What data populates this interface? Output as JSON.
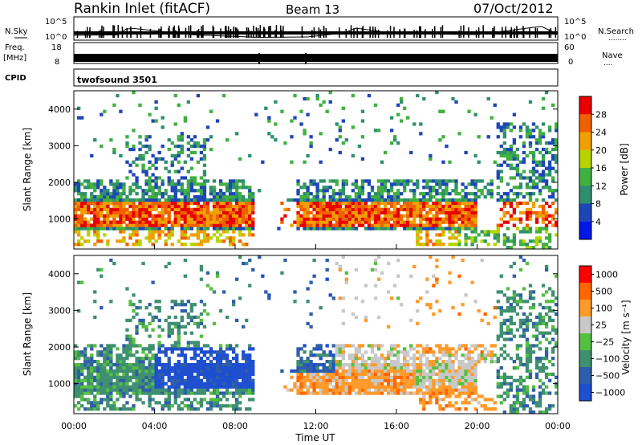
{
  "header": {
    "station": "Rankin Inlet (fitACF)",
    "beam": "Beam 13",
    "date": "07/Oct/2012"
  },
  "strip_labels": {
    "nsky": "N.Sky",
    "nsearch": "N.Search",
    "nsearch_dots": "........",
    "freq": "Freq.",
    "mhz": "[MHz]",
    "nave": "Nave",
    "nave_dots": "....",
    "cpid": "CPID",
    "cpid_value": "twofsound 3501"
  },
  "colors": {
    "power": [
      "#0018e8",
      "#1e46b8",
      "#2e8f6e",
      "#40b040",
      "#b8d400",
      "#f0a000",
      "#f06000",
      "#e80000"
    ],
    "velocity": [
      "#1d4fd0",
      "#2f5ea8",
      "#3f9070",
      "#55c040",
      "#c8c8c8",
      "#ff9a2a",
      "#ff6600",
      "#ff0000"
    ]
  },
  "chart_data": [
    {
      "type": "line",
      "panel": "noise",
      "x_label": "",
      "left_ticks": [
        "10^5",
        "10^0"
      ],
      "right_ticks": [
        "10^5",
        "10^0"
      ],
      "x": [
        0.0,
        2.2,
        2.6,
        3.0,
        6.0,
        9.2,
        11.6,
        13.4,
        14.0,
        16.0,
        20.0,
        22.8,
        23.2,
        24.0
      ],
      "nsky_log10": [
        0.8,
        0.9,
        2.4,
        2.5,
        0.9,
        0.3,
        0.4,
        1.4,
        2.6,
        1.2,
        1.0,
        2.8,
        3.0,
        1.1
      ]
    },
    {
      "type": "line",
      "panel": "frequency",
      "left_ticks": [
        "18",
        "8"
      ],
      "right_ticks": [
        "60",
        "0"
      ],
      "x": [
        0,
        24
      ],
      "freq_mhz": [
        12,
        12
      ],
      "nave": [
        30,
        30
      ]
    },
    {
      "type": "heatmap",
      "panel": "power",
      "ylabel": "Slant Range [km]",
      "colorbar_label": "Power [dB]",
      "colorbar_ticks": [
        "4",
        "8",
        "12",
        "16",
        "20",
        "24",
        "28"
      ],
      "y_ticks": [
        "1000",
        "2000",
        "3000",
        "4000"
      ],
      "ylim": [
        180,
        4500
      ],
      "xlim": [
        0,
        24
      ]
    },
    {
      "type": "heatmap",
      "panel": "velocity",
      "ylabel": "Slant Range [km]",
      "xlabel": "Time UT",
      "colorbar_label": "Velocity [m s⁻¹]",
      "colorbar_ticks": [
        "1000",
        "500",
        "100",
        "25",
        "−25",
        "−100",
        "−500",
        "−1000"
      ],
      "y_ticks": [
        "1000",
        "2000",
        "3000",
        "4000"
      ],
      "x_ticks": [
        "00:00",
        "04:00",
        "08:00",
        "12:00",
        "16:00",
        "20:00",
        "00:00"
      ],
      "ylim": [
        180,
        4500
      ],
      "xlim": [
        0,
        24
      ]
    }
  ]
}
